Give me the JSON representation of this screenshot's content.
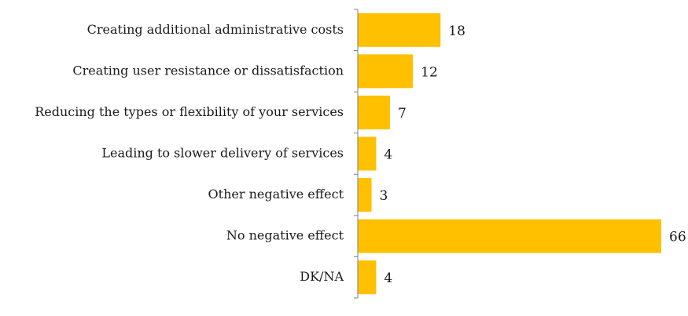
{
  "chart_data": {
    "type": "bar",
    "orientation": "horizontal",
    "categories": [
      "Creating additional administrative costs",
      "Creating user resistance or dissatisfaction",
      "Reducing the types or flexibility of your services",
      "Leading to slower delivery of services",
      "Other negative effect",
      "No negative effect",
      "DK/NA"
    ],
    "values": [
      18,
      12,
      7,
      4,
      3,
      66,
      4
    ],
    "value_labels": [
      "18",
      "12",
      "7",
      "4",
      "3",
      "66",
      "4"
    ],
    "title": "",
    "xlabel": "",
    "ylabel": "",
    "xlim": [
      0,
      66
    ],
    "grid": false,
    "legend": "none",
    "bar_color": "#FFC000",
    "axis_color": "#7f7f7f"
  }
}
